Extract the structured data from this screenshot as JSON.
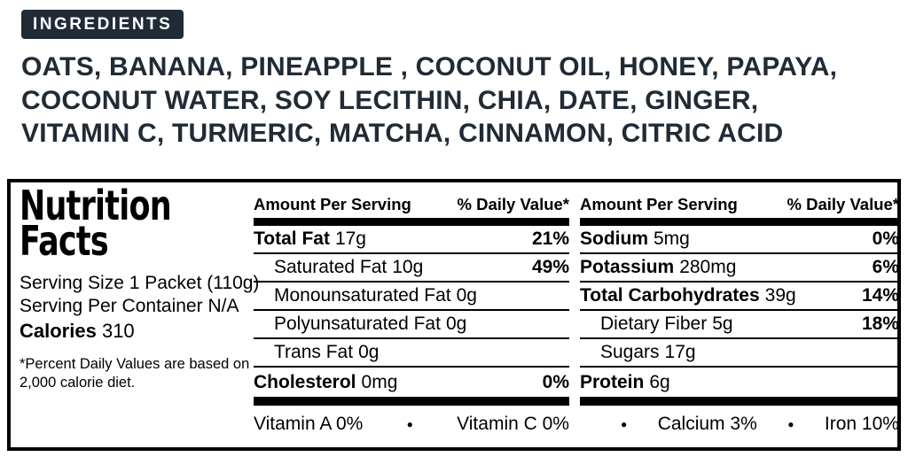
{
  "colors": {
    "ink": "#202b36",
    "label_black": "#000000",
    "page_bg": "#ffffff"
  },
  "ingredients": {
    "badge_label": "INGREDIENTS",
    "lines": [
      "OATS, BANANA, PINEAPPLE , COCONUT OIL, HONEY, PAPAYA,",
      "COCONUT WATER, SOY LECITHIN, CHIA, DATE, GINGER,",
      "VITAMIN C, TURMERIC, MATCHA, CINNAMON, CITRIC ACID"
    ]
  },
  "nutrition": {
    "title_lines": [
      "Nutrition",
      "Facts"
    ],
    "serving_size": "Serving Size 1 Packet (110g)",
    "servings_per_container": "Serving Per Container N/A",
    "calories_label": "Calories",
    "calories_value": "310",
    "footnote_lines": [
      "*Percent Daily Values are based on",
      "2,000 calorie diet."
    ],
    "column_header_amount": "Amount Per Serving",
    "column_header_dv": "% Daily Value*",
    "columns": [
      {
        "rows": [
          {
            "name": "Total Fat",
            "amount": "17g",
            "dv": "21%"
          },
          {
            "name": "Saturated Fat",
            "amount": "10g",
            "dv": "49%"
          },
          {
            "name": "Monounsaturated Fat",
            "amount": "0g",
            "dv": ""
          },
          {
            "name": "Polyunsaturated Fat",
            "amount": "0g",
            "dv": ""
          },
          {
            "name": "Trans Fat",
            "amount": "0g",
            "dv": ""
          },
          {
            "name": "Cholesterol",
            "amount": "0mg",
            "dv": "0%"
          }
        ]
      },
      {
        "rows": [
          {
            "name": "Sodium",
            "amount": "5mg",
            "dv": "0%"
          },
          {
            "name": "Potassium",
            "amount": "280mg",
            "dv": "6%"
          },
          {
            "name": "Total Carbohydrates",
            "amount": "39g",
            "dv": "14%"
          },
          {
            "name": "Dietary Fiber",
            "amount": "5g",
            "dv": "18%"
          },
          {
            "name": "Sugars",
            "amount": "17g",
            "dv": ""
          },
          {
            "name": "Protein",
            "amount": "6g",
            "dv": ""
          }
        ]
      }
    ],
    "micronutrients": {
      "bullet": "●",
      "vitamin_a": "Vitamin A 0%",
      "vitamin_c": "Vitamin C 0%",
      "calcium": "Calcium 3%",
      "iron": "Iron 10%"
    }
  }
}
